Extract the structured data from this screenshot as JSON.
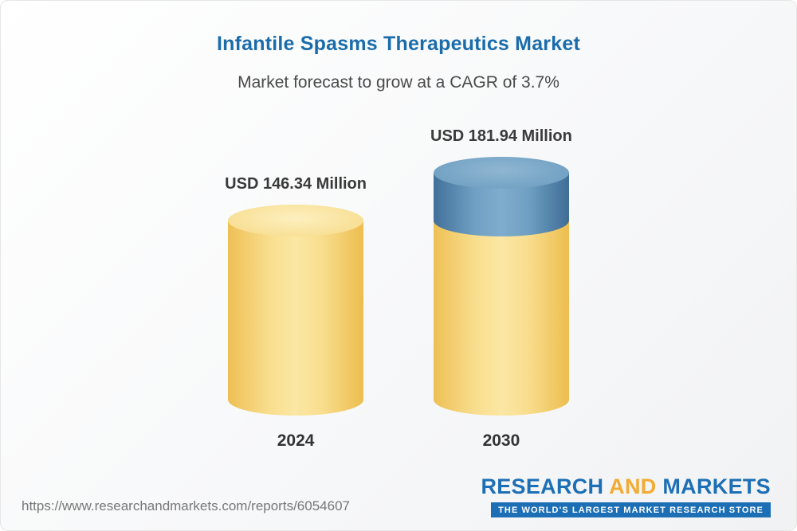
{
  "header": {
    "title": "Infantile Spasms Therapeutics Market",
    "subtitle": "Market forecast to grow at a CAGR of 3.7%"
  },
  "chart_data": {
    "type": "bar",
    "title": "Infantile Spasms Therapeutics Market",
    "subtitle": "Market forecast to grow at a CAGR of 3.7%",
    "unit": "USD Million",
    "categories": [
      "2024",
      "2030"
    ],
    "values": [
      146.34,
      181.94
    ],
    "value_labels": [
      "USD 146.34 Million",
      "USD 181.94 Million"
    ],
    "cagr": "3.7%",
    "ylim": [
      0,
      181.94
    ],
    "legend": "none",
    "grid": "off",
    "colors": {
      "bar_yellow": "#f7d77f",
      "cap_blue": "#5e8cb1",
      "title_blue": "#1a6cab"
    }
  },
  "footer": {
    "url": "https://www.researchandmarkets.com/reports/6054607",
    "logo": {
      "research": "RESEARCH",
      "and": "AND",
      "markets": "MARKETS",
      "tagline": "THE WORLD'S LARGEST MARKET RESEARCH STORE"
    }
  }
}
